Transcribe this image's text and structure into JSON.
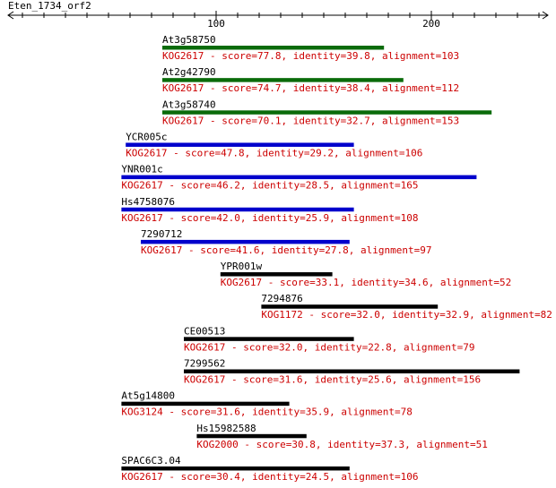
{
  "query": {
    "name": "Eten_1734_orf2",
    "axis_ticks": [
      {
        "value": 100,
        "label": "100"
      },
      {
        "value": 200,
        "label": "200"
      }
    ]
  },
  "colors": {
    "green": "#0a6b0a",
    "blue": "#0000cc",
    "black": "#000000",
    "info_text": "#cc0000"
  },
  "hits": [
    {
      "name": "At3g58750",
      "info": "KOG2617 - score=77.8, identity=39.8, alignment=103",
      "start": 75,
      "end": 178,
      "color": "green"
    },
    {
      "name": "At2g42790",
      "info": "KOG2617 - score=74.7, identity=38.4, alignment=112",
      "start": 75,
      "end": 187,
      "color": "green"
    },
    {
      "name": "At3g58740",
      "info": "KOG2617 - score=70.1, identity=32.7, alignment=153",
      "start": 75,
      "end": 228,
      "color": "green"
    },
    {
      "name": "YCR005c",
      "info": "KOG2617 - score=47.8, identity=29.2, alignment=106",
      "start": 58,
      "end": 164,
      "color": "blue"
    },
    {
      "name": "YNR001c",
      "info": "KOG2617 - score=46.2, identity=28.5, alignment=165",
      "start": 56,
      "end": 221,
      "color": "blue"
    },
    {
      "name": "Hs4758076",
      "info": "KOG2617 - score=42.0, identity=25.9, alignment=108",
      "start": 56,
      "end": 164,
      "color": "blue"
    },
    {
      "name": "7290712",
      "info": "KOG2617 - score=41.6, identity=27.8, alignment=97",
      "start": 65,
      "end": 162,
      "color": "blue"
    },
    {
      "name": "YPR001w",
      "info": "KOG2617 - score=33.1, identity=34.6, alignment=52",
      "start": 102,
      "end": 154,
      "color": "black"
    },
    {
      "name": "7294876",
      "info": "KOG1172 - score=32.0, identity=32.9, alignment=82",
      "start": 121,
      "end": 203,
      "color": "black"
    },
    {
      "name": "CE00513",
      "info": "KOG2617 - score=32.0, identity=22.8, alignment=79",
      "start": 85,
      "end": 164,
      "color": "black"
    },
    {
      "name": "7299562",
      "info": "KOG2617 - score=31.6, identity=25.6, alignment=156",
      "start": 85,
      "end": 241,
      "color": "black"
    },
    {
      "name": "At5g14800",
      "info": "KOG3124 - score=31.6, identity=35.9, alignment=78",
      "start": 56,
      "end": 134,
      "color": "black"
    },
    {
      "name": "Hs15982588",
      "info": "KOG2000 - score=30.8, identity=37.3, alignment=51",
      "start": 91,
      "end": 142,
      "color": "black"
    },
    {
      "name": "SPAC6C3.04",
      "info": "KOG2617 - score=30.4, identity=24.5, alignment=106",
      "start": 56,
      "end": 162,
      "color": "black"
    }
  ]
}
